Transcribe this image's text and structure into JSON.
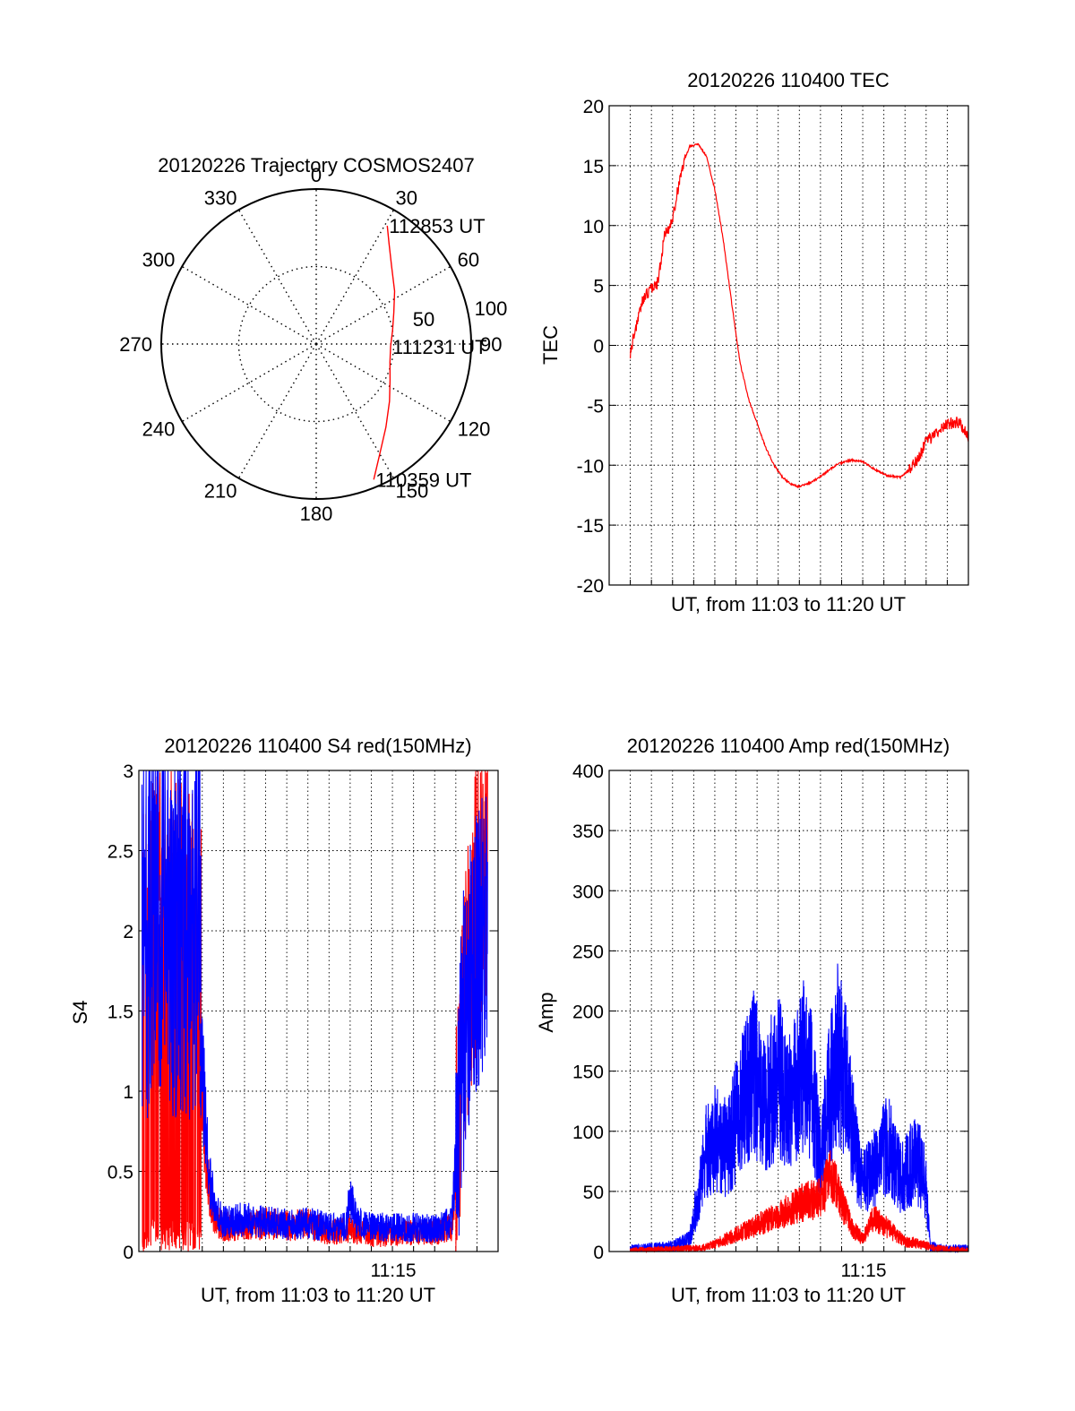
{
  "chart_data": [
    {
      "type": "polar",
      "title": "20120226 Trajectory COSMOS2407",
      "angle_labels": [
        "0",
        "30",
        "60",
        "90",
        "120",
        "150",
        "180",
        "210",
        "240",
        "270",
        "300",
        "330"
      ],
      "radius_labels": [
        "50",
        "100"
      ],
      "rlim": [
        0,
        100
      ],
      "series": [
        {
          "color": "#ff0000",
          "azimuth_deg": [
            157,
            150,
            140,
            128,
            116,
            104,
            92,
            80,
            68,
            56,
            44,
            36,
            31
          ],
          "zenith": [
            95,
            82,
            70,
            60,
            53,
            49,
            48,
            50,
            54,
            61,
            70,
            80,
            89
          ]
        }
      ],
      "annotations": [
        {
          "text": "112853 UT",
          "azimuth_deg": 31,
          "zenith": 89
        },
        {
          "text": "111231 UT",
          "azimuth_deg": 92,
          "zenith": 48
        },
        {
          "text": "110359 UT",
          "azimuth_deg": 157,
          "zenith": 95
        }
      ]
    },
    {
      "type": "line",
      "title": "20120226 110400 TEC",
      "xlabel": "UT, from 11:03 to 11:20 UT",
      "ylabel": "TEC",
      "xlim": [
        0,
        17
      ],
      "ylim": [
        -20,
        20
      ],
      "yticks": [
        "20",
        "15",
        "10",
        "5",
        "0",
        "-5",
        "-10",
        "-15",
        "-20"
      ],
      "grid": true,
      "series": [
        {
          "color": "#ff0000",
          "x": [
            1.0,
            1.3,
            1.6,
            2.0,
            2.3,
            2.6,
            3.0,
            3.4,
            3.8,
            4.2,
            4.6,
            5.0,
            5.4,
            5.8,
            6.2,
            6.6,
            7.0,
            7.4,
            7.8,
            8.2,
            8.6,
            9.0,
            9.6,
            10.2,
            10.8,
            11.4,
            12.0,
            12.6,
            13.2,
            13.8,
            14.2,
            14.6,
            15.0,
            15.4,
            15.8,
            16.2,
            16.6,
            17.0
          ],
          "y": [
            -0.6,
            1.8,
            3.8,
            4.8,
            5.2,
            9.0,
            10.5,
            14.5,
            16.6,
            16.8,
            15.8,
            13.0,
            8.8,
            3.5,
            -1.5,
            -4.5,
            -6.5,
            -8.5,
            -10.0,
            -11.0,
            -11.6,
            -11.8,
            -11.4,
            -10.7,
            -9.9,
            -9.6,
            -9.7,
            -10.4,
            -10.9,
            -11.0,
            -10.4,
            -9.5,
            -8.0,
            -7.5,
            -6.8,
            -6.5,
            -6.4,
            -7.8
          ]
        }
      ]
    },
    {
      "type": "line",
      "title": "20120226 110400 S4 red(150MHz)",
      "xlabel": "UT, from 11:03 to 11:20 UT",
      "ylabel": "S4",
      "xlim": [
        0,
        17
      ],
      "ylim": [
        0,
        3
      ],
      "yticks": [
        "3",
        "2.5",
        "2",
        "1.5",
        "1",
        "0.5",
        "0"
      ],
      "xtick_label": "11:15",
      "grid": true,
      "series": [
        {
          "color": "#ff0000",
          "x": [
            2.9,
            3.1,
            3.3,
            3.6,
            4.0,
            5.0,
            6.0,
            7.0,
            8.0,
            9.0,
            10.0,
            11.0,
            12.0,
            13.0,
            14.0,
            14.8,
            15.0,
            15.2,
            15.5,
            16.0,
            16.5
          ],
          "y": [
            1.25,
            0.8,
            0.4,
            0.2,
            0.16,
            0.15,
            0.18,
            0.16,
            0.17,
            0.12,
            0.14,
            0.1,
            0.11,
            0.12,
            0.12,
            0.15,
            0.5,
            1.0,
            1.6,
            2.2,
            2.5
          ]
        },
        {
          "color": "#0000ff",
          "x": [
            2.9,
            3.1,
            3.3,
            3.6,
            4.0,
            5.0,
            6.0,
            7.0,
            8.0,
            9.0,
            9.8,
            10.0,
            10.3,
            11.0,
            12.0,
            13.0,
            14.0,
            14.8,
            15.0,
            15.2,
            15.5,
            16.0,
            16.5
          ],
          "y": [
            1.3,
            0.9,
            0.5,
            0.25,
            0.18,
            0.2,
            0.18,
            0.17,
            0.18,
            0.15,
            0.15,
            0.35,
            0.18,
            0.15,
            0.15,
            0.15,
            0.14,
            0.18,
            0.55,
            1.1,
            1.6,
            1.9,
            2.0
          ]
        }
      ]
    },
    {
      "type": "line",
      "title": "20120226 110400 Amp red(150MHz)",
      "xlabel": "UT, from 11:03 to 11:20 UT",
      "ylabel": "Amp",
      "xlim": [
        0,
        17
      ],
      "ylim": [
        0,
        400
      ],
      "yticks": [
        "400",
        "350",
        "300",
        "250",
        "200",
        "150",
        "100",
        "50",
        "0"
      ],
      "xtick_label": "11:15",
      "grid": true,
      "series": [
        {
          "color": "#0000ff",
          "x": [
            1.0,
            2.0,
            3.0,
            3.8,
            4.2,
            4.6,
            5.0,
            5.6,
            6.2,
            6.8,
            7.4,
            8.0,
            8.6,
            9.2,
            9.6,
            10.0,
            10.4,
            10.8,
            11.2,
            11.6,
            12.0,
            12.6,
            13.2,
            13.8,
            14.4,
            14.8,
            15.0,
            15.2,
            15.6,
            16.4,
            17.0
          ],
          "y": [
            2,
            3,
            4,
            10,
            45,
            85,
            95,
            85,
            120,
            150,
            125,
            145,
            125,
            155,
            140,
            75,
            130,
            165,
            140,
            90,
            55,
            70,
            90,
            60,
            75,
            70,
            50,
            5,
            2,
            2,
            2
          ]
        },
        {
          "color": "#ff0000",
          "x": [
            1.0,
            3.0,
            4.4,
            5.0,
            6.0,
            7.0,
            8.0,
            9.0,
            10.0,
            10.5,
            11.0,
            11.5,
            12.0,
            12.5,
            13.0,
            13.5,
            14.0,
            14.5,
            15.0,
            15.3,
            16.0,
            17.0
          ],
          "y": [
            1,
            2,
            3,
            6,
            14,
            22,
            30,
            40,
            45,
            65,
            40,
            20,
            10,
            28,
            22,
            15,
            8,
            7,
            5,
            3,
            2,
            1
          ]
        }
      ]
    }
  ]
}
